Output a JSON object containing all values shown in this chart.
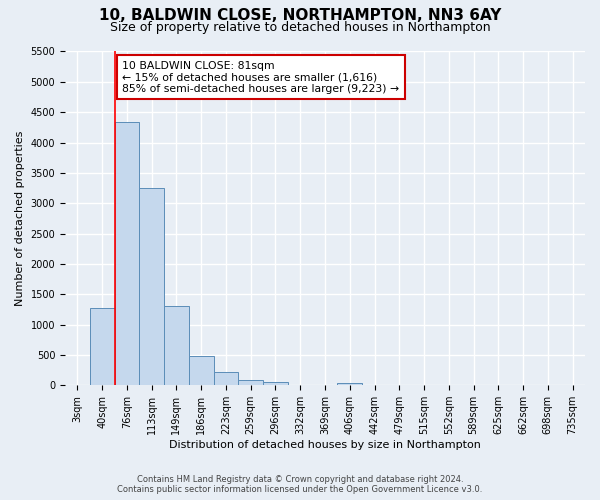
{
  "title": "10, BALDWIN CLOSE, NORTHAMPTON, NN3 6AY",
  "subtitle": "Size of property relative to detached houses in Northampton",
  "xlabel": "Distribution of detached houses by size in Northampton",
  "ylabel": "Number of detached properties",
  "bar_labels": [
    "3sqm",
    "40sqm",
    "76sqm",
    "113sqm",
    "149sqm",
    "186sqm",
    "223sqm",
    "259sqm",
    "296sqm",
    "332sqm",
    "369sqm",
    "406sqm",
    "442sqm",
    "479sqm",
    "515sqm",
    "552sqm",
    "589sqm",
    "625sqm",
    "662sqm",
    "698sqm",
    "735sqm"
  ],
  "bar_values": [
    0,
    1270,
    4330,
    3250,
    1300,
    480,
    220,
    90,
    50,
    0,
    0,
    35,
    0,
    0,
    0,
    0,
    0,
    0,
    0,
    0,
    0
  ],
  "bar_color": "#c5d8ed",
  "bar_edge_color": "#5b8db8",
  "ylim": [
    0,
    5500
  ],
  "yticks": [
    0,
    500,
    1000,
    1500,
    2000,
    2500,
    3000,
    3500,
    4000,
    4500,
    5000,
    5500
  ],
  "red_line_x": 1.5,
  "annotation_text": "10 BALDWIN CLOSE: 81sqm\n← 15% of detached houses are smaller (1,616)\n85% of semi-detached houses are larger (9,223) →",
  "annotation_box_color": "#ffffff",
  "annotation_box_edge_color": "#cc0000",
  "footer_line1": "Contains HM Land Registry data © Crown copyright and database right 2024.",
  "footer_line2": "Contains public sector information licensed under the Open Government Licence v3.0.",
  "bg_color": "#e8eef5",
  "grid_color": "#ffffff",
  "title_fontsize": 11,
  "subtitle_fontsize": 9,
  "axis_label_fontsize": 8,
  "tick_fontsize": 7
}
